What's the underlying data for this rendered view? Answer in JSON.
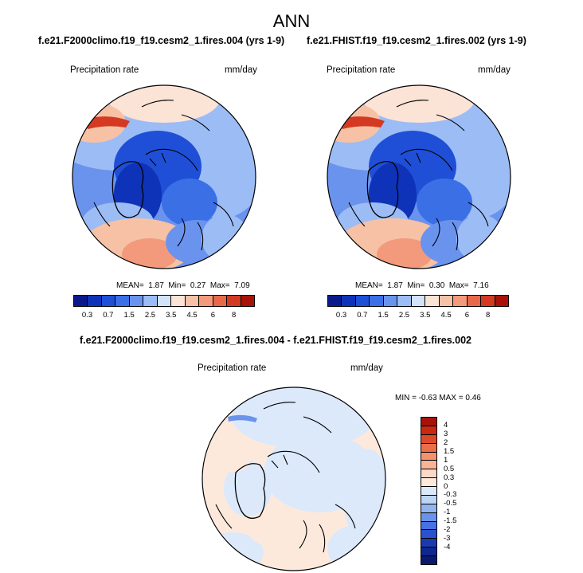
{
  "title": "ANN",
  "panels": [
    {
      "case": "f.e21.F2000climo.f19_f19.cesm2_1.fires.004 (yrs 1-9)",
      "variable": "Precipitation rate",
      "units": "mm/day",
      "stats": {
        "mean_label": "MEAN=",
        "mean": "1.87",
        "min_label": "Min=",
        "min": "0.27",
        "max_label": "Max=",
        "max": "7.09"
      }
    },
    {
      "case": "f.e21.FHIST.f19_f19.cesm2_1.fires.002 (yrs 1-9)",
      "variable": "Precipitation rate",
      "units": "mm/day",
      "stats": {
        "mean_label": "MEAN=",
        "mean": "1.87",
        "min_label": "Min=",
        "min": "0.30",
        "max_label": "Max=",
        "max": "7.16"
      }
    }
  ],
  "colorbar": {
    "colors": [
      "#0a1a8a",
      "#0f33b8",
      "#1f4fd6",
      "#3b6fe6",
      "#6a93ee",
      "#9cbcf5",
      "#d2e3fa",
      "#fbe3d6",
      "#f7c1a6",
      "#f29a7b",
      "#e8684a",
      "#d43a22",
      "#a8120a"
    ],
    "tick_labels": [
      "0.3",
      "0.7",
      "1.5",
      "2.5",
      "3.5",
      "4.5",
      "6",
      "8"
    ]
  },
  "difference": {
    "title": "f.e21.F2000climo.f19_f19.cesm2_1.fires.004 - f.e21.FHIST.f19_f19.cesm2_1.fires.002",
    "variable": "Precipitation rate",
    "units": "mm/day",
    "minmax": "MIN =  -0.63 MAX =   0.46",
    "colorbar": {
      "colors": [
        "#a8120a",
        "#c9290f",
        "#dd4a2a",
        "#ec6d4a",
        "#f4926d",
        "#f8b596",
        "#fbd9c6",
        "#fde9dc",
        "#dbe9fb",
        "#bcd5f6",
        "#93b5ef",
        "#6a93ea",
        "#4672e2",
        "#2a52cf",
        "#1a3bb0",
        "#0f2890",
        "#0a1a6e"
      ],
      "tick_labels": [
        "4",
        "3",
        "2",
        "1.5",
        "1",
        "0.5",
        "0.3",
        "0",
        "-0.3",
        "-0.5",
        "-1",
        "-1.5",
        "-2",
        "-3",
        "-4"
      ]
    }
  }
}
